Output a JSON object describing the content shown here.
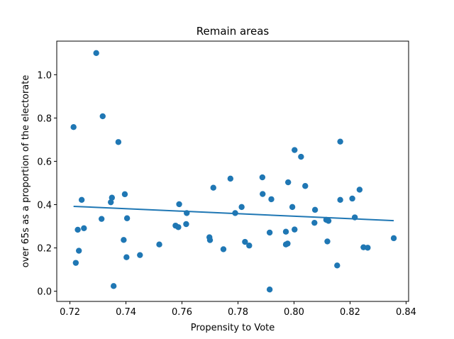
{
  "chart_data": {
    "type": "scatter",
    "title": "Remain areas",
    "xlabel": "Propensity to Vote",
    "ylabel": "over 65s as a proportion of the electorate",
    "xlim": [
      0.7153,
      0.8409
    ],
    "ylim": [
      -0.047,
      1.155
    ],
    "xticks": [
      0.72,
      0.74,
      0.76,
      0.78,
      0.8,
      0.82,
      0.84
    ],
    "xtick_labels": [
      "0.72",
      "0.74",
      "0.76",
      "0.78",
      "0.80",
      "0.82",
      "0.84"
    ],
    "yticks": [
      0.0,
      0.2,
      0.4,
      0.6,
      0.8,
      1.0
    ],
    "ytick_labels": [
      "0.0",
      "0.2",
      "0.4",
      "0.6",
      "0.8",
      "1.0"
    ],
    "grid": false,
    "color": "#1f77b4",
    "points": [
      [
        0.7213,
        0.758
      ],
      [
        0.7221,
        0.131
      ],
      [
        0.7228,
        0.284
      ],
      [
        0.7232,
        0.187
      ],
      [
        0.7242,
        0.422
      ],
      [
        0.725,
        0.291
      ],
      [
        0.7294,
        1.1
      ],
      [
        0.7313,
        0.334
      ],
      [
        0.7317,
        0.808
      ],
      [
        0.7346,
        0.411
      ],
      [
        0.735,
        0.432
      ],
      [
        0.7356,
        0.024
      ],
      [
        0.7373,
        0.689
      ],
      [
        0.7392,
        0.237
      ],
      [
        0.7396,
        0.448
      ],
      [
        0.7402,
        0.157
      ],
      [
        0.7404,
        0.337
      ],
      [
        0.745,
        0.167
      ],
      [
        0.7519,
        0.216
      ],
      [
        0.7577,
        0.303
      ],
      [
        0.7587,
        0.296
      ],
      [
        0.759,
        0.402
      ],
      [
        0.7615,
        0.31
      ],
      [
        0.7617,
        0.361
      ],
      [
        0.7698,
        0.249
      ],
      [
        0.77,
        0.236
      ],
      [
        0.7712,
        0.478
      ],
      [
        0.7748,
        0.194
      ],
      [
        0.7773,
        0.52
      ],
      [
        0.779,
        0.361
      ],
      [
        0.7813,
        0.389
      ],
      [
        0.7825,
        0.228
      ],
      [
        0.784,
        0.211
      ],
      [
        0.7887,
        0.526
      ],
      [
        0.7888,
        0.449
      ],
      [
        0.7913,
        0.008
      ],
      [
        0.7913,
        0.271
      ],
      [
        0.7919,
        0.425
      ],
      [
        0.7971,
        0.275
      ],
      [
        0.7971,
        0.216
      ],
      [
        0.7977,
        0.22
      ],
      [
        0.7979,
        0.503
      ],
      [
        0.7994,
        0.389
      ],
      [
        0.8002,
        0.652
      ],
      [
        0.8002,
        0.285
      ],
      [
        0.8025,
        0.621
      ],
      [
        0.804,
        0.486
      ],
      [
        0.8073,
        0.316
      ],
      [
        0.8075,
        0.376
      ],
      [
        0.8115,
        0.33
      ],
      [
        0.8119,
        0.23
      ],
      [
        0.8123,
        0.325
      ],
      [
        0.8154,
        0.119
      ],
      [
        0.8165,
        0.691
      ],
      [
        0.8165,
        0.422
      ],
      [
        0.8208,
        0.428
      ],
      [
        0.8217,
        0.341
      ],
      [
        0.8234,
        0.469
      ],
      [
        0.8248,
        0.203
      ],
      [
        0.8263,
        0.201
      ],
      [
        0.8356,
        0.245
      ]
    ],
    "trend_line": {
      "x": [
        0.7213,
        0.8356
      ],
      "y": [
        0.392,
        0.326
      ]
    }
  }
}
